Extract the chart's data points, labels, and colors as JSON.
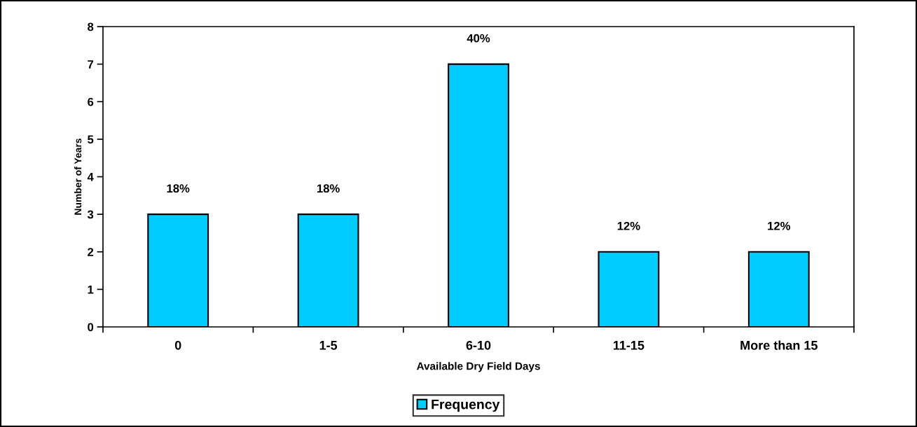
{
  "chart_data": {
    "type": "bar",
    "xlabel": "Available Dry Field Days",
    "ylabel": "Number of Years",
    "categories": [
      "0",
      "1-5",
      "6-10",
      "11-15",
      "More than 15"
    ],
    "series": [
      {
        "name": "Frequency",
        "color": "#00ccff",
        "values": [
          3,
          3,
          7,
          2,
          2
        ]
      }
    ],
    "annotations": [
      {
        "text": "18%",
        "x": "0",
        "y": 3
      },
      {
        "text": "18%",
        "x": "1-5",
        "y": 3
      },
      {
        "text": "40%",
        "x": "6-10",
        "y": 7
      },
      {
        "text": "12%",
        "x": "11-15",
        "y": 2
      },
      {
        "text": "12%",
        "x": "More than 15",
        "y": 2
      }
    ],
    "ylim": [
      0,
      8
    ],
    "yticks": [
      0,
      1,
      2,
      3,
      4,
      5,
      6,
      7,
      8
    ],
    "legend": "bottom"
  }
}
